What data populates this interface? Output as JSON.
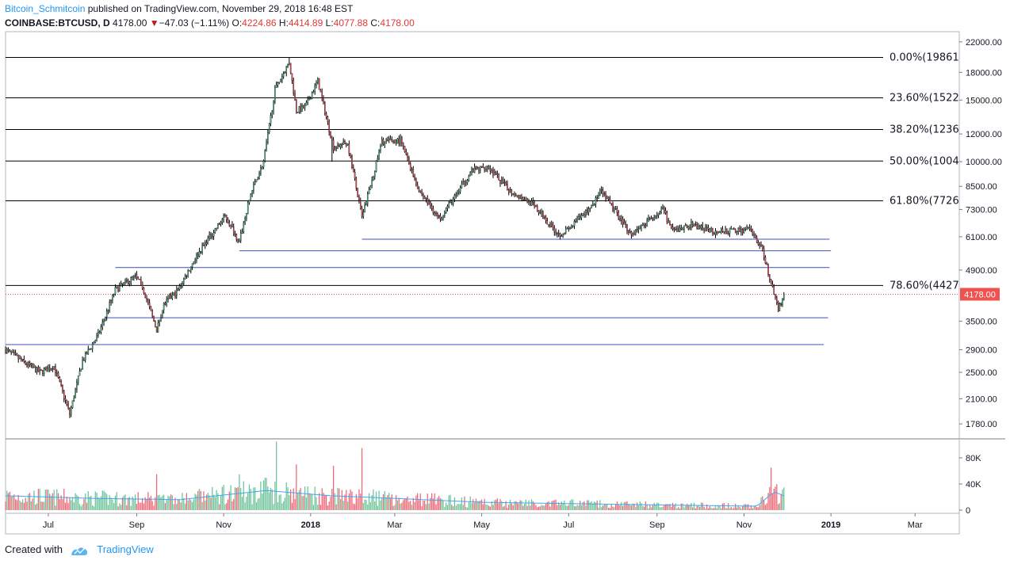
{
  "header": {
    "author": "Bitcoin_Schmitcoin",
    "published": "published on TradingView.com, November 29, 2018 16:48 EST",
    "symbol": "COINBASE:BTCUSD, D",
    "last": "4178.00",
    "change": "−47.03 (−1.11%)",
    "o_label": "O:",
    "o_value": "4224.86",
    "h_label": "H:",
    "h_value": "4414.89",
    "l_label": "L:",
    "l_value": "4077.88",
    "c_label": "C:",
    "c_value": "4178.00"
  },
  "footer": {
    "created_with": "Created with",
    "brand": "TradingView"
  },
  "colors": {
    "up": "#26a69a",
    "down": "#ef5350",
    "candle_up": "#53b987",
    "candle_down": "#eb4d5c",
    "fib": "#000000",
    "support": "#3f51b5",
    "price_tag": "#ef5350",
    "ma": "#42a5f5"
  },
  "chart_data": {
    "type": "candlestick",
    "price_axis": {
      "scale": "log",
      "ticks": [
        1780,
        2100,
        2500,
        2900,
        3500,
        4900,
        6100,
        7300,
        8500,
        10000,
        12000,
        15000,
        18000,
        22000
      ],
      "tick_labels": [
        "1780.00",
        "2100.00",
        "2500.00",
        "2900.00",
        "3500.00",
        "4900.00",
        "6100.00",
        "7300.00",
        "8500.00",
        "10000.00",
        "12000.00",
        "15000.00",
        "18000.00",
        "22000.00"
      ]
    },
    "volume_axis": {
      "ticks": [
        0,
        40000,
        80000
      ],
      "tick_labels": [
        "0",
        "40K",
        "80K"
      ]
    },
    "time_axis": {
      "labels": [
        "Jul",
        "Sep",
        "Nov",
        "2018",
        "Mar",
        "May",
        "Jul",
        "Sep",
        "Nov",
        "2019",
        "Mar"
      ],
      "bold": [
        false,
        false,
        false,
        true,
        false,
        false,
        false,
        false,
        false,
        true,
        false
      ],
      "dates": [
        "2017-07-01",
        "2017-09-01",
        "2017-11-01",
        "2018-01-01",
        "2018-03-01",
        "2018-05-01",
        "2018-07-01",
        "2018-09-01",
        "2018-11-01",
        "2019-01-01",
        "2019-03-01"
      ]
    },
    "current_price": {
      "value": 4178,
      "label": "4178.00"
    },
    "fib_levels": [
      {
        "label": "0.00%(19861",
        "price": 19861
      },
      {
        "label": "23.60%(1522",
        "price": 15220
      },
      {
        "label": "38.20%(1236",
        "price": 12360
      },
      {
        "label": "50.00%(1004",
        "price": 10040
      },
      {
        "label": "61.80%(7726",
        "price": 7726
      },
      {
        "label": "78.60%(4427",
        "price": 4427
      }
    ],
    "support_lines": [
      {
        "price": 6000,
        "from": "2018-02-06",
        "to": "2018-12-31"
      },
      {
        "price": 5560,
        "from": "2017-11-12",
        "to": "2019-01-01"
      },
      {
        "price": 4980,
        "from": "2017-08-17",
        "to": "2018-12-31"
      },
      {
        "price": 3580,
        "from": "2017-08-10",
        "to": "2018-12-30"
      },
      {
        "price": 3000,
        "from": "2017-06-01",
        "to": "2018-12-27"
      }
    ],
    "series": [
      {
        "name": "BTCUSD",
        "price_anchors": [
          [
            "2017-06-01",
            2900
          ],
          [
            "2017-06-12",
            2700
          ],
          [
            "2017-06-25",
            2500
          ],
          [
            "2017-07-05",
            2600
          ],
          [
            "2017-07-16",
            1900
          ],
          [
            "2017-07-25",
            2700
          ],
          [
            "2017-08-05",
            3200
          ],
          [
            "2017-08-17",
            4300
          ],
          [
            "2017-08-31",
            4700
          ],
          [
            "2017-09-05",
            4400
          ],
          [
            "2017-09-15",
            3300
          ],
          [
            "2017-09-20",
            3900
          ],
          [
            "2017-09-30",
            4300
          ],
          [
            "2017-10-12",
            5300
          ],
          [
            "2017-10-21",
            6000
          ],
          [
            "2017-11-02",
            7000
          ],
          [
            "2017-11-12",
            5900
          ],
          [
            "2017-11-20",
            8100
          ],
          [
            "2017-11-29",
            10000
          ],
          [
            "2017-12-07",
            16000
          ],
          [
            "2017-12-17",
            19300
          ],
          [
            "2017-12-22",
            14000
          ],
          [
            "2017-12-28",
            14300
          ],
          [
            "2018-01-06",
            17000
          ],
          [
            "2018-01-17",
            11000
          ],
          [
            "2018-01-27",
            11300
          ],
          [
            "2018-02-06",
            6900
          ],
          [
            "2018-02-20",
            11400
          ],
          [
            "2018-03-05",
            11500
          ],
          [
            "2018-03-18",
            8300
          ],
          [
            "2018-04-01",
            6900
          ],
          [
            "2018-04-12",
            7900
          ],
          [
            "2018-04-24",
            9400
          ],
          [
            "2018-05-05",
            9700
          ],
          [
            "2018-05-20",
            8300
          ],
          [
            "2018-06-05",
            7600
          ],
          [
            "2018-06-24",
            6200
          ],
          [
            "2018-07-01",
            6400
          ],
          [
            "2018-07-16",
            7400
          ],
          [
            "2018-07-24",
            8200
          ],
          [
            "2018-08-05",
            7000
          ],
          [
            "2018-08-14",
            6200
          ],
          [
            "2018-09-01",
            7100
          ],
          [
            "2018-09-05",
            7300
          ],
          [
            "2018-09-12",
            6300
          ],
          [
            "2018-09-25",
            6600
          ],
          [
            "2018-10-12",
            6300
          ],
          [
            "2018-11-05",
            6400
          ],
          [
            "2018-11-14",
            5600
          ],
          [
            "2018-11-20",
            4500
          ],
          [
            "2018-11-25",
            3800
          ],
          [
            "2018-11-29",
            4178
          ]
        ],
        "events": [
          [
            "2018-01-16",
            10000,
            "low"
          ],
          [
            "2017-07-16",
            1850,
            "low"
          ],
          [
            "2017-12-17",
            19850,
            "high"
          ]
        ]
      },
      {
        "name": "Volume",
        "volume_anchors": [
          [
            "2017-06-01",
            22000
          ],
          [
            "2017-08-01",
            18000
          ],
          [
            "2017-10-01",
            16000
          ],
          [
            "2017-12-01",
            30000
          ],
          [
            "2018-01-15",
            22000
          ],
          [
            "2018-03-01",
            18000
          ],
          [
            "2018-05-01",
            12000
          ],
          [
            "2018-07-01",
            10000
          ],
          [
            "2018-09-01",
            8000
          ],
          [
            "2018-11-10",
            6000
          ],
          [
            "2018-11-22",
            28000
          ],
          [
            "2018-11-29",
            22000
          ]
        ],
        "spikes": [
          [
            "2017-12-08",
            105000
          ],
          [
            "2017-12-22",
            70000
          ],
          [
            "2018-02-06",
            95000
          ],
          [
            "2018-01-17",
            68000
          ],
          [
            "2017-11-12",
            55000
          ],
          [
            "2017-09-15",
            55000
          ],
          [
            "2018-11-20",
            65000
          ]
        ]
      }
    ]
  }
}
